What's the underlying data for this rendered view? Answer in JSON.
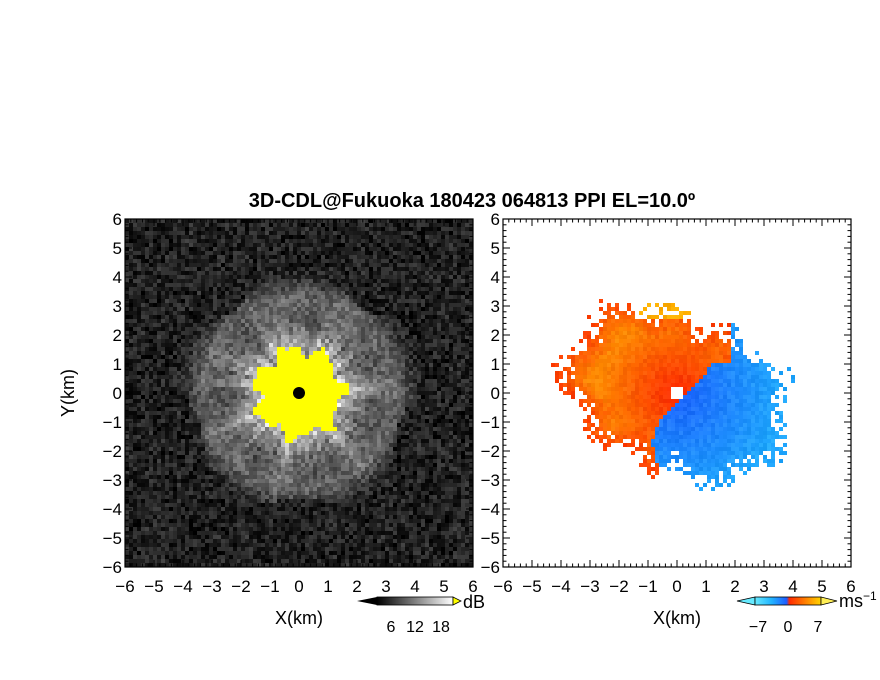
{
  "title": "3D-CDL@Fukuoka 180423 064813 PPI EL=10.0º",
  "chart_data": [
    {
      "type": "heatmap",
      "panel": "left",
      "quantity": "reflectivity",
      "xlabel": "X(km)",
      "ylabel": "Y(km)",
      "xlim": [
        -6,
        6
      ],
      "ylim": [
        -6,
        6
      ],
      "xticks": [
        "−6",
        "−5",
        "−4",
        "−3",
        "−2",
        "−1",
        "0",
        "1",
        "2",
        "3",
        "4",
        "5",
        "6"
      ],
      "yticks": [
        "6",
        "5",
        "4",
        "3",
        "2",
        "1",
        "0",
        "−1",
        "−2",
        "−3",
        "−4",
        "−5",
        "−6"
      ],
      "colorbar": {
        "unit": "dB",
        "ticks": [
          "6",
          "12",
          "18"
        ],
        "range": [
          0,
          24
        ],
        "colormap": "grayscale",
        "saturation_color": "#ffff00"
      },
      "features": {
        "saturated_core_radius_km": 1.5,
        "echo_extent_km": 4.0,
        "center_marker": "black dot",
        "background": "noise, near black"
      }
    },
    {
      "type": "heatmap",
      "panel": "right",
      "quantity": "radial velocity",
      "xlabel": "X(km)",
      "xlim": [
        -6,
        6
      ],
      "ylim": [
        -6,
        6
      ],
      "xticks": [
        "−6",
        "−5",
        "−4",
        "−3",
        "−2",
        "−1",
        "0",
        "1",
        "2",
        "3",
        "4",
        "5",
        "6"
      ],
      "yticks": [
        "6",
        "5",
        "4",
        "3",
        "2",
        "1",
        "0",
        "−1",
        "−2",
        "−3",
        "−4",
        "−5",
        "−6"
      ],
      "colorbar": {
        "unit": "ms",
        "unit_exp": "−1",
        "ticks": [
          "−7",
          "0",
          "7"
        ],
        "range": [
          -9,
          9
        ],
        "colormap": "blue-cyan-red-orange-yellow"
      },
      "features": {
        "pattern": "positive (toward) to the north-west, negative to the south-east",
        "echo_extent_km": 4.3,
        "center_marker": "white dot",
        "background": "white (no data)"
      }
    }
  ],
  "colors": {
    "saturated": "#ffff00",
    "velocity_pos": "#ff3300",
    "velocity_orange": "#ff8800",
    "velocity_neg": "#1e6cff",
    "velocity_cyan": "#22ccff"
  }
}
